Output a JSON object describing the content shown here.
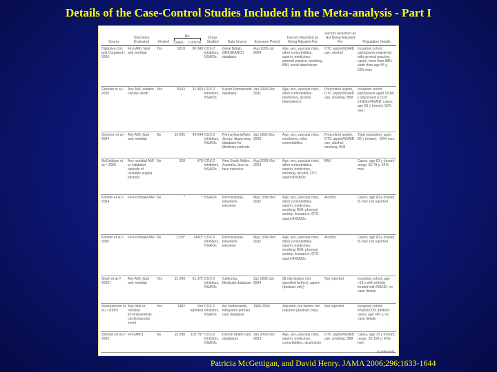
{
  "title": "Details of the Case-Control Studies Included in the Meta-analysis - Part I",
  "citation": "Patricia McGettigan, and David Henry.  JAMA 2006;296:1633-1644",
  "table": {
    "group_header": "No.",
    "headers": [
      "Source",
      "Outcomes Evaluated",
      "Nested",
      "Cases",
      "Controls",
      "Drugs Studied",
      "Data Source",
      "Exposure Period",
      "Factors Reported as Being Adjusted For",
      "Factors Reported as Not Being Adjusted For",
      "Population Details"
    ],
    "rows": [
      [
        "Hippisley-Cox and Coupland,² 2005",
        "First AMI, fatal and nonfatal",
        "Yes",
        "9218",
        "86 349",
        "COX-2 inhibitors, NSAIDs",
        "Great Britain, QRESEARCH database",
        "Aug 2000-Jul 2004",
        "Age, sex, vascular risks, other comorbidities, aspirin, medicines, general practice, smoking, BMI, social deprivation",
        "OTC aspirin/NSAID use, alcohol",
        "Inception cohort, participants registered with general practice; cases, more than 68% older than age 55 y, 63% men"
      ],
      [
        "Graham et al,¹ 2005",
        "Any AMI, sudden cardiac death",
        "Yes",
        "8143",
        "31 469",
        "COX-2 inhibitors, NSAIDs",
        "Kaiser Permanente database",
        "Jan 1999-Dec 2001",
        "Age, sex, vascular risks, other comorbidities, medicines, alcohol dependence",
        "Prescribed aspirin, OTC aspirin/NSAID use, smoking, BMI",
        "Inception cohort, participants aged 18-84 y dispensed a COX inhibitor/NSAID; cases, age 66 y (mean); 52% men"
      ],
      [
        "Solomon et al,⁴ 2004",
        "Any AMI, fatal and nonfatal",
        "No",
        "10 895",
        "49 044",
        "COX-2 inhibitors, NSAIDs",
        "Pennsylvania/New Jersey, dispensing database for Medicare patients",
        "Jan 1999-Dec 2000",
        "Age, sex, vascular risks, medicines, other comorbidities",
        "Prescribed aspirin, OTC aspirin/NSAID use, alcohol, smoking, BMI",
        "Total population, aged 80 y (mean); ~20% men"
      ],
      [
        "McGettigan et al,¹¹ 2006",
        "Any nonfatal AMI or validated episode of unstable angina pectoris",
        "No",
        "328",
        "478",
        "COX-2 inhibitors, NSAIDs",
        "New South Wales, Australia, face-to-face interview",
        "Aug 2003-Oct 2004",
        "Age, sex, vascular risks, other comorbidities, aspirin, medicines, smoking, alcohol, OTC aspirin/NSAIDs",
        "BMI",
        "Cases, age 63 y (mean); range, 55-78 y; 64% men"
      ],
      [
        "Kimmel et al,¹² 2004",
        "First nonfatal AMI",
        "No",
        "*",
        "*",
        "NSAIDs",
        "Pennsylvania, telephone interview",
        "May 1998-Dec 2002",
        "Age, sex, vascular risks, other comorbidities, aspirin, medicines, smoking, BMI, physical activity, insurance, OTC aspirin/NSAIDs",
        "Alcohol",
        "Cases, age 60 y (mean); % men not reported"
      ],
      [
        "Kimmel et al,¹³ 2005",
        "First nonfatal AMI",
        "No",
        "1718*",
        "6800*",
        "COX-2 inhibitors, NSAIDs",
        "Pennsylvania, telephone interview",
        "May 1998-Dec 2002",
        "Age, sex, vascular risks, other comorbidities, aspirin, medicines, smoking, BMI, physical activity, insurance, OTC aspirin/NSAIDs",
        "Alcohol",
        "Cases, age 60 y (mean); % men not reported"
      ],
      [
        "Singh et al,²³ 2005†",
        "Any AMI, fatal and nonfatal",
        "Yes",
        "15 343",
        "61 372",
        "COX-2 inhibitors, NSAIDs",
        "California, Medicaid database",
        "Jan 1999-Jun 2004",
        "38 risk factors (not specified further), aspirin (abstract only)",
        "Not reported",
        "Inception cohort, age >18 y with arthritis treated with NSAID, no case details"
      ],
      [
        "Sturkenboom et al,²⁴ 2005†",
        "Any fatal or nonfatal thromboembolic cardiovascular event",
        "Yes",
        "1482",
        "Not reported",
        "COX-2 inhibitors, NSAIDs",
        "the Netherlands, integrated primary care database",
        "1996-2004",
        "Adjusted, but factors not reported (abstract only)",
        "Not reported",
        "Inception cohort, NSAID/COX inhibitor users, age >45 y, no case details"
      ],
      [
        "Johnsen et al,²⁵ 2005",
        "First AMI‡",
        "No",
        "10 280",
        "102 797",
        "COX-2 inhibitors, NSAIDs",
        "Danish health care databases",
        "Jan 2000-Dec 2003",
        "Age, sex, vascular risks, aspirin, medicines, comorbidities, alcoholism",
        "OTC aspirin/NSAID use, smoking, BMI",
        "Cases, age 70 y (mean); range, 20-100 y; 60% men"
      ]
    ],
    "continued": "(continued)"
  }
}
